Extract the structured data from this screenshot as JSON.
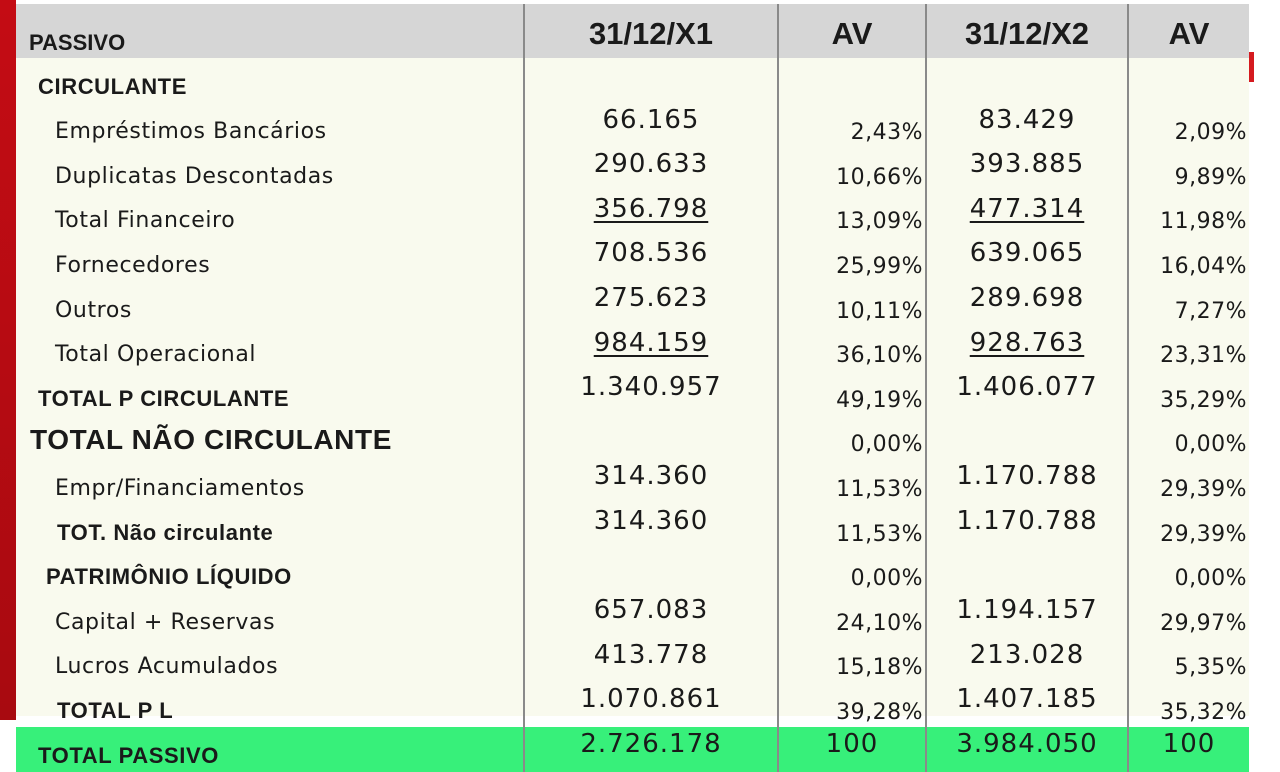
{
  "header": {
    "label": "PASSIVO",
    "col1": "31/12/X1",
    "col2": "AV",
    "col3": "31/12/X2",
    "col4": "AV"
  },
  "rows": [
    {
      "label": "CIRCULANTE",
      "v1": "",
      "p1": "",
      "v2": "",
      "p2": "",
      "style": "sec"
    },
    {
      "label": "Empréstimos Bancários",
      "v1": "66.165",
      "p1": "2,43%",
      "v2": "83.429",
      "p2": "2,09%",
      "style": "item"
    },
    {
      "label": "Duplicatas Descontadas",
      "v1": "290.633",
      "p1": "10,66%",
      "v2": "393.885",
      "p2": "9,89%",
      "style": "item"
    },
    {
      "label": "Total Financeiro",
      "v1": "356.798",
      "p1": "13,09%",
      "v2": "477.314",
      "p2": "11,98%",
      "style": "item",
      "underline": true
    },
    {
      "label": "Fornecedores",
      "v1": "708.536",
      "p1": "25,99%",
      "v2": "639.065",
      "p2": "16,04%",
      "style": "item"
    },
    {
      "label": "Outros",
      "v1": "275.623",
      "p1": "10,11%",
      "v2": "289.698",
      "p2": "7,27%",
      "style": "item"
    },
    {
      "label": "Total Operacional",
      "v1": "984.159",
      "p1": "36,10%",
      "v2": "928.763",
      "p2": "23,31%",
      "style": "item",
      "underline": true
    },
    {
      "label": "TOTAL P CIRCULANTE",
      "v1": "1.340.957",
      "p1": "49,19%",
      "v2": "1.406.077",
      "p2": "35,29%",
      "style": "sec"
    },
    {
      "label": "TOTAL  NÃO CIRCULANTE",
      "v1": "",
      "p1": "0,00%",
      "v2": "",
      "p2": "0,00%",
      "style": "big"
    },
    {
      "label": "Empr/Financiamentos",
      "v1": "314.360",
      "p1": "11,53%",
      "v2": "1.170.788",
      "p2": "29,39%",
      "style": "item"
    },
    {
      "label": "TOT. Não circulante",
      "v1": "314.360",
      "p1": "11,53%",
      "v2": "1.170.788",
      "p2": "29,39%",
      "style": "sub"
    },
    {
      "label": "PATRIMÔNIO LÍQUIDO",
      "v1": "",
      "p1": "0,00%",
      "v2": "",
      "p2": "0,00%",
      "style": "bold"
    },
    {
      "label": "Capital + Reservas",
      "v1": "657.083",
      "p1": "24,10%",
      "v2": "1.194.157",
      "p2": "29,97%",
      "style": "item"
    },
    {
      "label": "Lucros Acumulados",
      "v1": "413.778",
      "p1": "15,18%",
      "v2": "213.028",
      "p2": "5,35%",
      "style": "item"
    },
    {
      "label": "TOTAL P L",
      "v1": "1.070.861",
      "p1": "39,28%",
      "v2": "1.407.185",
      "p2": "35,32%",
      "style": "sub"
    }
  ],
  "total": {
    "label": "TOTAL PASSIVO",
    "v1": "2.726.178",
    "p1": "100",
    "v2": "3.984.050",
    "p2": "100",
    "color": "#37f07a"
  }
}
